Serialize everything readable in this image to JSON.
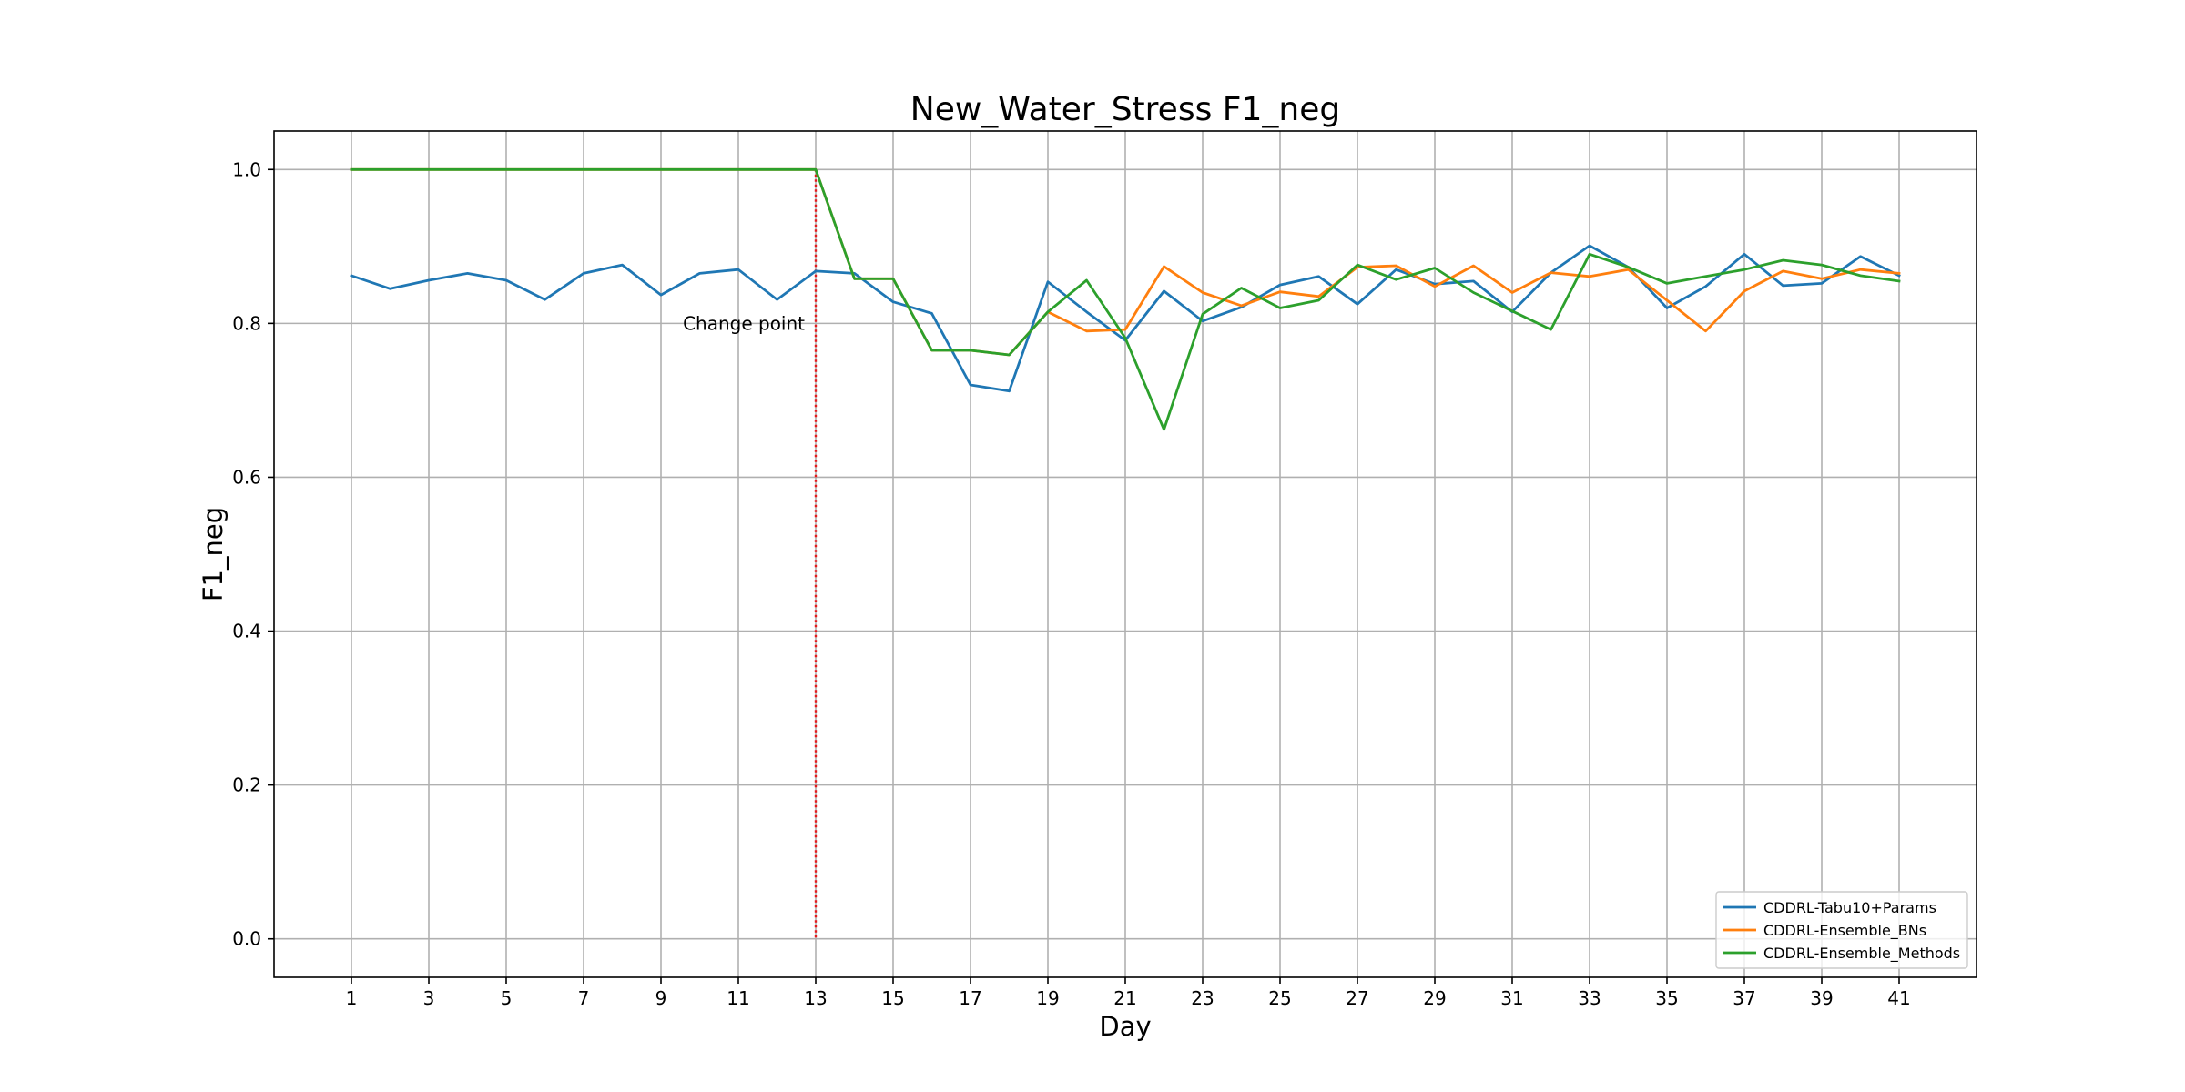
{
  "chart_data": {
    "type": "line",
    "title": "New_Water_Stress F1_neg",
    "xlabel": "Day",
    "ylabel": "F1_neg",
    "xlim": [
      -1,
      43
    ],
    "ylim": [
      -0.05,
      1.05
    ],
    "xticks": [
      1,
      3,
      5,
      7,
      9,
      11,
      13,
      15,
      17,
      19,
      21,
      23,
      25,
      27,
      29,
      31,
      33,
      35,
      37,
      39,
      41
    ],
    "yticks": [
      0.0,
      0.2,
      0.4,
      0.6,
      0.8,
      1.0
    ],
    "ytick_labels": [
      "0.0",
      "0.2",
      "0.4",
      "0.6",
      "0.8",
      "1.0"
    ],
    "grid": true,
    "legend_position": "lower-right",
    "change_point": {
      "x": 13,
      "label": "Change point",
      "color": "#e41a1c",
      "style": "dotted"
    },
    "series": [
      {
        "name": "CDDRL-Tabu10+Params",
        "color": "#1f77b4",
        "x": [
          1,
          2,
          3,
          4,
          5,
          6,
          7,
          8,
          9,
          10,
          11,
          12,
          13,
          14,
          15,
          16,
          17,
          18,
          19,
          20,
          21,
          22,
          23,
          24,
          25,
          26,
          27,
          28,
          29,
          30,
          31,
          32,
          33,
          34,
          35,
          36,
          37,
          38,
          39,
          40,
          41
        ],
        "values": [
          0.862,
          0.845,
          0.856,
          0.865,
          0.856,
          0.831,
          0.865,
          0.876,
          0.837,
          0.865,
          0.87,
          0.831,
          0.868,
          0.865,
          0.828,
          0.813,
          0.72,
          0.712,
          0.854,
          0.815,
          0.778,
          0.842,
          0.803,
          0.821,
          0.85,
          0.861,
          0.825,
          0.87,
          0.851,
          0.855,
          0.815,
          0.866,
          0.901,
          0.873,
          0.82,
          0.848,
          0.89,
          0.849,
          0.852,
          0.887,
          0.862
        ]
      },
      {
        "name": "CDDRL-Ensemble_BNs",
        "color": "#ff7f0e",
        "x": [
          1,
          2,
          3,
          4,
          5,
          6,
          7,
          8,
          9,
          10,
          11,
          12,
          13,
          14,
          15,
          16,
          17,
          18,
          19,
          20,
          21,
          22,
          23,
          24,
          25,
          26,
          27,
          28,
          29,
          30,
          31,
          32,
          33,
          34,
          35,
          36,
          37,
          38,
          39,
          40,
          41
        ],
        "values": [
          1.0,
          1.0,
          1.0,
          1.0,
          1.0,
          1.0,
          1.0,
          1.0,
          1.0,
          1.0,
          1.0,
          1.0,
          1.0,
          0.858,
          0.858,
          0.765,
          0.765,
          0.759,
          0.815,
          0.79,
          0.792,
          0.874,
          0.84,
          0.823,
          0.841,
          0.835,
          0.873,
          0.875,
          0.848,
          0.875,
          0.84,
          0.866,
          0.861,
          0.87,
          0.83,
          0.79,
          0.842,
          0.868,
          0.858,
          0.87,
          0.865
        ]
      },
      {
        "name": "CDDRL-Ensemble_Methods",
        "color": "#2ca02c",
        "x": [
          1,
          2,
          3,
          4,
          5,
          6,
          7,
          8,
          9,
          10,
          11,
          12,
          13,
          14,
          15,
          16,
          17,
          18,
          19,
          20,
          21,
          22,
          23,
          24,
          25,
          26,
          27,
          28,
          29,
          30,
          31,
          32,
          33,
          34,
          35,
          36,
          37,
          38,
          39,
          40,
          41
        ],
        "values": [
          1.0,
          1.0,
          1.0,
          1.0,
          1.0,
          1.0,
          1.0,
          1.0,
          1.0,
          1.0,
          1.0,
          1.0,
          1.0,
          0.858,
          0.858,
          0.765,
          0.765,
          0.759,
          0.815,
          0.856,
          0.781,
          0.662,
          0.812,
          0.846,
          0.82,
          0.83,
          0.876,
          0.857,
          0.872,
          0.84,
          0.816,
          0.792,
          0.89,
          0.873,
          0.852,
          0.861,
          0.87,
          0.882,
          0.876,
          0.862,
          0.855
        ]
      }
    ]
  }
}
